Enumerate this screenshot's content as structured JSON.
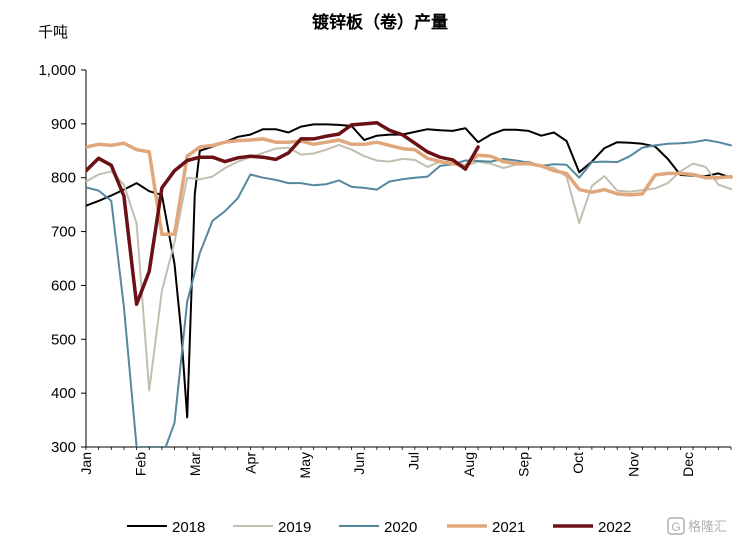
{
  "chart_data": {
    "type": "line",
    "title": "镀锌板（卷）产量",
    "unit_label": "千吨",
    "ylim": [
      300,
      1000
    ],
    "yticks": [
      300,
      400,
      500,
      600,
      700,
      800,
      900,
      1000
    ],
    "ytick_labels": [
      "300",
      "400",
      "500",
      "600",
      "700",
      "800",
      "900",
      "1,000"
    ],
    "xlim": [
      1,
      52
    ],
    "months": [
      "Jan",
      "Feb",
      "Mar",
      "Apr",
      "May",
      "Jun",
      "Jul",
      "Aug",
      "Sep",
      "Oct",
      "Nov",
      "Dec"
    ],
    "month_weeks": [
      1,
      5.3,
      9.6,
      14,
      18.3,
      22.6,
      26.9,
      31.3,
      35.6,
      39.9,
      44.3,
      48.6
    ],
    "legend_position": "bottom",
    "grid": false,
    "series": [
      {
        "name": "2018",
        "color": "#000000",
        "width": 2,
        "x": [
          1,
          2,
          3,
          4,
          5,
          6,
          7,
          8,
          8.5,
          9,
          9.6,
          10,
          11,
          12,
          13,
          14,
          15,
          16,
          17,
          18,
          19,
          20,
          21,
          22,
          23,
          24,
          25,
          26,
          27,
          28,
          29,
          30,
          31,
          32,
          33,
          34,
          35,
          36,
          37,
          38,
          39,
          40,
          40.5,
          41,
          42,
          43,
          44,
          45,
          46,
          47,
          48,
          49,
          50,
          51,
          52
        ],
        "y": [
          748,
          757,
          767,
          778,
          790,
          775,
          768,
          640,
          520,
          355,
          770,
          850,
          858,
          866,
          876,
          880,
          890,
          890,
          884,
          895,
          899,
          899,
          898,
          896,
          870,
          878,
          880,
          880,
          885,
          890,
          888,
          887,
          892,
          866,
          880,
          889,
          889,
          887,
          878,
          884,
          868,
          810,
          820,
          830,
          855,
          866,
          865,
          863,
          858,
          835,
          805,
          804,
          803,
          808,
          800
        ]
      },
      {
        "name": "2019",
        "color": "#c0bfb0",
        "width": 2,
        "x": [
          1,
          2,
          3,
          4,
          5,
          6,
          7,
          8,
          9,
          10,
          11,
          12,
          13,
          14,
          15,
          16,
          17,
          18,
          19,
          20,
          21,
          22,
          23,
          24,
          25,
          26,
          27,
          28,
          29,
          30,
          31,
          32,
          33,
          34,
          35,
          36,
          37,
          38,
          39,
          40,
          41,
          42,
          43,
          44,
          45,
          46,
          47,
          48,
          49,
          50,
          51,
          52
        ],
        "y": [
          793,
          806,
          812,
          787,
          715,
          405,
          590,
          680,
          800,
          797,
          802,
          818,
          830,
          838,
          846,
          854,
          856,
          843,
          845,
          852,
          861,
          852,
          840,
          832,
          830,
          835,
          833,
          820,
          830,
          826,
          822,
          830,
          826,
          818,
          824,
          830,
          822,
          818,
          802,
          716,
          785,
          803,
          776,
          774,
          777,
          780,
          790,
          812,
          826,
          820,
          787,
          779
        ]
      },
      {
        "name": "2020",
        "color": "#55889e",
        "width": 2,
        "x": [
          1,
          2,
          3,
          4,
          5,
          5.4,
          6,
          7,
          7.3,
          8,
          9,
          10,
          11,
          12,
          13,
          14,
          15,
          16,
          17,
          18,
          19,
          20,
          21,
          22,
          23,
          24,
          25,
          26,
          27,
          28,
          29,
          30,
          31,
          32,
          33,
          34,
          35,
          36,
          37,
          38,
          39,
          40,
          41,
          42,
          43,
          44,
          45,
          46,
          47,
          48,
          49,
          50,
          51,
          52
        ],
        "y": [
          782,
          776,
          757,
          560,
          300,
          300,
          300,
          300,
          300,
          345,
          570,
          660,
          720,
          738,
          762,
          806,
          800,
          796,
          790,
          790,
          786,
          788,
          795,
          783,
          781,
          778,
          793,
          797,
          800,
          802,
          822,
          825,
          832,
          831,
          830,
          835,
          832,
          828,
          822,
          825,
          824,
          800,
          829,
          830,
          829,
          840,
          856,
          860,
          863,
          864,
          866,
          870,
          866,
          860
        ]
      },
      {
        "name": "2021",
        "color": "#e0a77c",
        "width": 3.5,
        "x": [
          1,
          2,
          3,
          4,
          5,
          6,
          7,
          8,
          9,
          10,
          11,
          12,
          13,
          14,
          15,
          16,
          17,
          18,
          19,
          20,
          21,
          22,
          23,
          24,
          25,
          26,
          27,
          28,
          29,
          30,
          31,
          32,
          33,
          34,
          35,
          36,
          37,
          38,
          39,
          40,
          41,
          42,
          43,
          44,
          45,
          46,
          47,
          48,
          49,
          50,
          51,
          52
        ],
        "y": [
          857,
          862,
          860,
          864,
          852,
          848,
          695,
          695,
          840,
          857,
          860,
          866,
          869,
          870,
          872,
          866,
          866,
          868,
          862,
          866,
          870,
          862,
          862,
          866,
          860,
          854,
          852,
          836,
          830,
          826,
          822,
          842,
          840,
          830,
          826,
          826,
          822,
          813,
          808,
          778,
          773,
          778,
          770,
          768,
          770,
          805,
          808,
          808,
          806,
          800,
          800,
          802
        ]
      },
      {
        "name": "2022",
        "color": "#6b1014",
        "width": 3.5,
        "x": [
          1,
          2,
          3,
          4,
          5,
          6,
          7,
          8,
          9,
          10,
          11,
          12,
          13,
          14,
          15,
          16,
          17,
          18,
          19,
          20,
          21,
          22,
          23,
          24,
          25,
          26,
          27,
          28,
          29,
          30,
          31,
          32
        ],
        "y": [
          813,
          836,
          823,
          766,
          565,
          626,
          781,
          813,
          832,
          838,
          838,
          830,
          837,
          840,
          838,
          834,
          846,
          872,
          872,
          877,
          881,
          898,
          900,
          902,
          888,
          880,
          864,
          848,
          838,
          833,
          816,
          857
        ]
      }
    ]
  },
  "watermark": {
    "text": "格隆汇",
    "icon": "gelonghui-logo-icon"
  }
}
